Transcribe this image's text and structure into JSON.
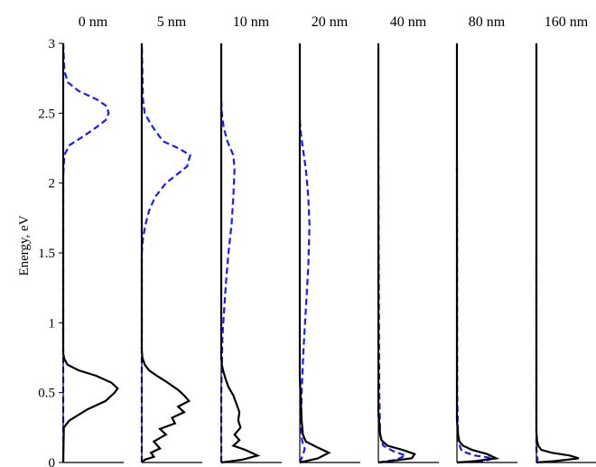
{
  "chart_data": {
    "type": "line",
    "ylabel": "Energy, eV",
    "ylim": [
      0,
      3
    ],
    "yticks": [
      0,
      0.5,
      1,
      1.5,
      2,
      2.5,
      3
    ],
    "ytick_labels": [
      "0",
      "0.5",
      "1",
      "1.5",
      "2",
      "2.5",
      "3"
    ],
    "grid": false,
    "legend": "none",
    "x_axis": "relative intensity (unlabeled, no ticks)",
    "colors": {
      "solid": "#000000",
      "dashed": "#1a1aff"
    },
    "panels": [
      {
        "title": "0 nm",
        "solid": [
          [
            0,
            0
          ],
          [
            0.01,
            0.25
          ],
          [
            0.1,
            0.3
          ],
          [
            0.4,
            0.38
          ],
          [
            0.7,
            0.44
          ],
          [
            0.85,
            0.5
          ],
          [
            0.9,
            0.53
          ],
          [
            0.8,
            0.57
          ],
          [
            0.55,
            0.62
          ],
          [
            0.25,
            0.66
          ],
          [
            0.07,
            0.7
          ],
          [
            0.02,
            0.74
          ],
          [
            0,
            0.78
          ],
          [
            0,
            3
          ]
        ],
        "dashed": [
          [
            0,
            0
          ],
          [
            0,
            2.05
          ],
          [
            0.02,
            2.2
          ],
          [
            0.1,
            2.27
          ],
          [
            0.35,
            2.34
          ],
          [
            0.55,
            2.4
          ],
          [
            0.7,
            2.45
          ],
          [
            0.75,
            2.5
          ],
          [
            0.72,
            2.55
          ],
          [
            0.55,
            2.6
          ],
          [
            0.25,
            2.66
          ],
          [
            0.08,
            2.72
          ],
          [
            0.02,
            2.8
          ],
          [
            0,
            3
          ]
        ]
      },
      {
        "title": "5 nm",
        "solid": [
          [
            0,
            0
          ],
          [
            0.05,
            0.02
          ],
          [
            0.2,
            0.04
          ],
          [
            0.15,
            0.07
          ],
          [
            0.3,
            0.1
          ],
          [
            0.2,
            0.15
          ],
          [
            0.4,
            0.2
          ],
          [
            0.3,
            0.24
          ],
          [
            0.55,
            0.28
          ],
          [
            0.5,
            0.32
          ],
          [
            0.7,
            0.36
          ],
          [
            0.6,
            0.4
          ],
          [
            0.78,
            0.44
          ],
          [
            0.7,
            0.48
          ],
          [
            0.6,
            0.52
          ],
          [
            0.4,
            0.58
          ],
          [
            0.25,
            0.62
          ],
          [
            0.12,
            0.66
          ],
          [
            0.05,
            0.7
          ],
          [
            0.01,
            0.75
          ],
          [
            0,
            0.8
          ],
          [
            0,
            3
          ]
        ],
        "dashed": [
          [
            0,
            0
          ],
          [
            0,
            1.5
          ],
          [
            0.02,
            1.6
          ],
          [
            0.06,
            1.7
          ],
          [
            0.12,
            1.8
          ],
          [
            0.22,
            1.9
          ],
          [
            0.4,
            2.0
          ],
          [
            0.55,
            2.05
          ],
          [
            0.75,
            2.12
          ],
          [
            0.8,
            2.2
          ],
          [
            0.6,
            2.25
          ],
          [
            0.35,
            2.3
          ],
          [
            0.15,
            2.42
          ],
          [
            0.05,
            2.5
          ],
          [
            0.02,
            2.6
          ],
          [
            0,
            3
          ]
        ]
      },
      {
        "title": "10 nm",
        "solid": [
          [
            0,
            0
          ],
          [
            0.35,
            0.02
          ],
          [
            0.6,
            0.05
          ],
          [
            0.4,
            0.09
          ],
          [
            0.2,
            0.12
          ],
          [
            0.3,
            0.16
          ],
          [
            0.22,
            0.2
          ],
          [
            0.32,
            0.25
          ],
          [
            0.28,
            0.3
          ],
          [
            0.3,
            0.36
          ],
          [
            0.25,
            0.42
          ],
          [
            0.2,
            0.48
          ],
          [
            0.12,
            0.54
          ],
          [
            0.07,
            0.6
          ],
          [
            0.03,
            0.66
          ],
          [
            0.01,
            0.7
          ],
          [
            0,
            0.75
          ],
          [
            0,
            3
          ]
        ],
        "dashed": [
          [
            0,
            0
          ],
          [
            0,
            0.5
          ],
          [
            0.01,
            0.7
          ],
          [
            0.02,
            0.9
          ],
          [
            0.05,
            1.1
          ],
          [
            0.08,
            1.3
          ],
          [
            0.12,
            1.5
          ],
          [
            0.17,
            1.7
          ],
          [
            0.2,
            1.9
          ],
          [
            0.22,
            2.1
          ],
          [
            0.2,
            2.2
          ],
          [
            0.1,
            2.3
          ],
          [
            0.04,
            2.4
          ],
          [
            0.01,
            2.5
          ],
          [
            0,
            2.6
          ]
        ]
      },
      {
        "title": "20 nm",
        "solid": [
          [
            0,
            0
          ],
          [
            0.3,
            0.03
          ],
          [
            0.48,
            0.07
          ],
          [
            0.28,
            0.11
          ],
          [
            0.1,
            0.15
          ],
          [
            0.05,
            0.2
          ],
          [
            0.04,
            0.25
          ],
          [
            0.03,
            0.3
          ],
          [
            0.025,
            0.35
          ],
          [
            0.02,
            0.4
          ],
          [
            0.015,
            0.45
          ],
          [
            0.01,
            0.5
          ],
          [
            0.005,
            0.56
          ],
          [
            0,
            0.62
          ],
          [
            0,
            3
          ]
        ],
        "dashed": [
          [
            0,
            0
          ],
          [
            0.05,
            0.05
          ],
          [
            0.08,
            0.1
          ],
          [
            0.04,
            0.15
          ],
          [
            0.02,
            0.25
          ],
          [
            0.03,
            0.5
          ],
          [
            0.06,
            0.8
          ],
          [
            0.1,
            1.1
          ],
          [
            0.14,
            1.4
          ],
          [
            0.16,
            1.7
          ],
          [
            0.14,
            1.9
          ],
          [
            0.1,
            2.1
          ],
          [
            0.05,
            2.25
          ],
          [
            0.02,
            2.35
          ],
          [
            0,
            2.45
          ]
        ]
      },
      {
        "title": "40 nm",
        "solid": [
          [
            0,
            0
          ],
          [
            0.2,
            0.01
          ],
          [
            0.55,
            0.03
          ],
          [
            0.6,
            0.06
          ],
          [
            0.4,
            0.09
          ],
          [
            0.15,
            0.12
          ],
          [
            0.05,
            0.16
          ],
          [
            0.03,
            0.2
          ],
          [
            0.02,
            0.25
          ],
          [
            0.01,
            0.3
          ],
          [
            0,
            0.35
          ],
          [
            0,
            3
          ]
        ],
        "dashed": [
          [
            0,
            0
          ],
          [
            0.3,
            0.02
          ],
          [
            0.45,
            0.05
          ],
          [
            0.25,
            0.08
          ],
          [
            0.08,
            0.12
          ],
          [
            0.03,
            0.2
          ],
          [
            0.015,
            0.5
          ],
          [
            0.01,
            1.0
          ],
          [
            0.005,
            1.6
          ],
          [
            0.002,
            2.1
          ],
          [
            0,
            2.4
          ]
        ]
      },
      {
        "title": "80 nm",
        "solid": [
          [
            0,
            0
          ],
          [
            0.3,
            0.01
          ],
          [
            0.65,
            0.03
          ],
          [
            0.5,
            0.06
          ],
          [
            0.25,
            0.09
          ],
          [
            0.1,
            0.12
          ],
          [
            0.04,
            0.15
          ],
          [
            0.02,
            0.2
          ],
          [
            0.01,
            0.25
          ],
          [
            0,
            0.3
          ],
          [
            0,
            3
          ]
        ],
        "dashed": [
          [
            0,
            0
          ],
          [
            0.45,
            0.01
          ],
          [
            0.6,
            0.03
          ],
          [
            0.3,
            0.05
          ],
          [
            0.08,
            0.08
          ],
          [
            0.02,
            0.15
          ],
          [
            0.005,
            0.5
          ],
          [
            0,
            2.15
          ]
        ]
      },
      {
        "title": "160 nm",
        "solid": [
          [
            0,
            0
          ],
          [
            0.3,
            0.01
          ],
          [
            0.7,
            0.03
          ],
          [
            0.55,
            0.05
          ],
          [
            0.25,
            0.07
          ],
          [
            0.08,
            0.09
          ],
          [
            0.03,
            0.12
          ],
          [
            0.01,
            0.16
          ],
          [
            0,
            0.22
          ],
          [
            0,
            3
          ]
        ],
        "dashed": [
          [
            0,
            0
          ],
          [
            0.02,
            0.02
          ],
          [
            0.01,
            0.05
          ],
          [
            0,
            0.1
          ],
          [
            0,
            1.5
          ]
        ]
      }
    ]
  }
}
